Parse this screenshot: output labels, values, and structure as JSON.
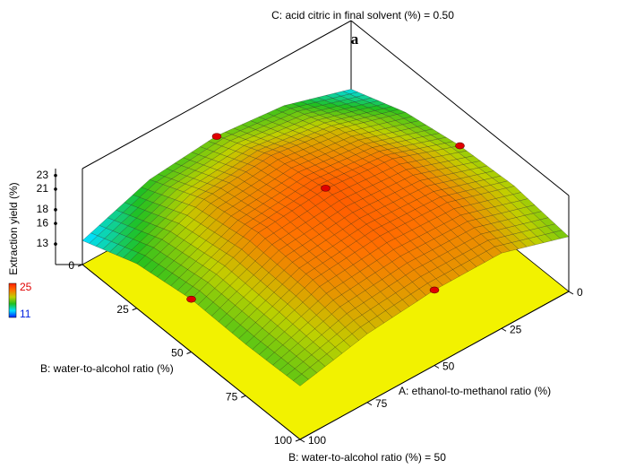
{
  "chart_data": {
    "type": "surface",
    "title": "C: acid citric in final solvent (%) = 0.50",
    "subtitle": "B: water-to-alcohol ratio (%) = 50",
    "panel_label": "a",
    "xlabel": "A: ethanol-to-methanol ratio (%)",
    "ylabel": "B: water-to-alcohol ratio (%)",
    "zlabel": "Extraction yield (%)",
    "x": [
      0,
      25,
      50,
      75,
      100
    ],
    "y": [
      0,
      25,
      50,
      75,
      100
    ],
    "z": [
      [
        14,
        17,
        18,
        17,
        13.5
      ],
      [
        17,
        20,
        21.5,
        20.5,
        16.5
      ],
      [
        18.5,
        22,
        23,
        22,
        17.7
      ],
      [
        19,
        22,
        22.5,
        21.5,
        17.5
      ],
      [
        18,
        21,
        21,
        20,
        17.8
      ]
    ],
    "xlim": [
      0,
      100
    ],
    "ylim": [
      0,
      100
    ],
    "zlim": [
      10,
      24
    ],
    "xticks": [
      0,
      25,
      50,
      75,
      100
    ],
    "yticks": [
      0,
      25,
      50,
      75,
      100
    ],
    "zticks": [
      13,
      16,
      18,
      21,
      23
    ],
    "colorbar": {
      "min": 11,
      "max": 25,
      "colors": [
        "#0020ff",
        "#00e0ff",
        "#20c020",
        "#c0d000",
        "#ff7000",
        "#ff2000"
      ]
    },
    "floor_color": "#f2f200",
    "mesh_color": "#222222",
    "points": {
      "color": "#e00000",
      "x": [
        50,
        0,
        50,
        100,
        50
      ],
      "y": [
        0,
        50,
        50,
        50,
        100
      ],
      "z": [
        17.9,
        18.5,
        23.1,
        17.7,
        21
      ]
    }
  }
}
